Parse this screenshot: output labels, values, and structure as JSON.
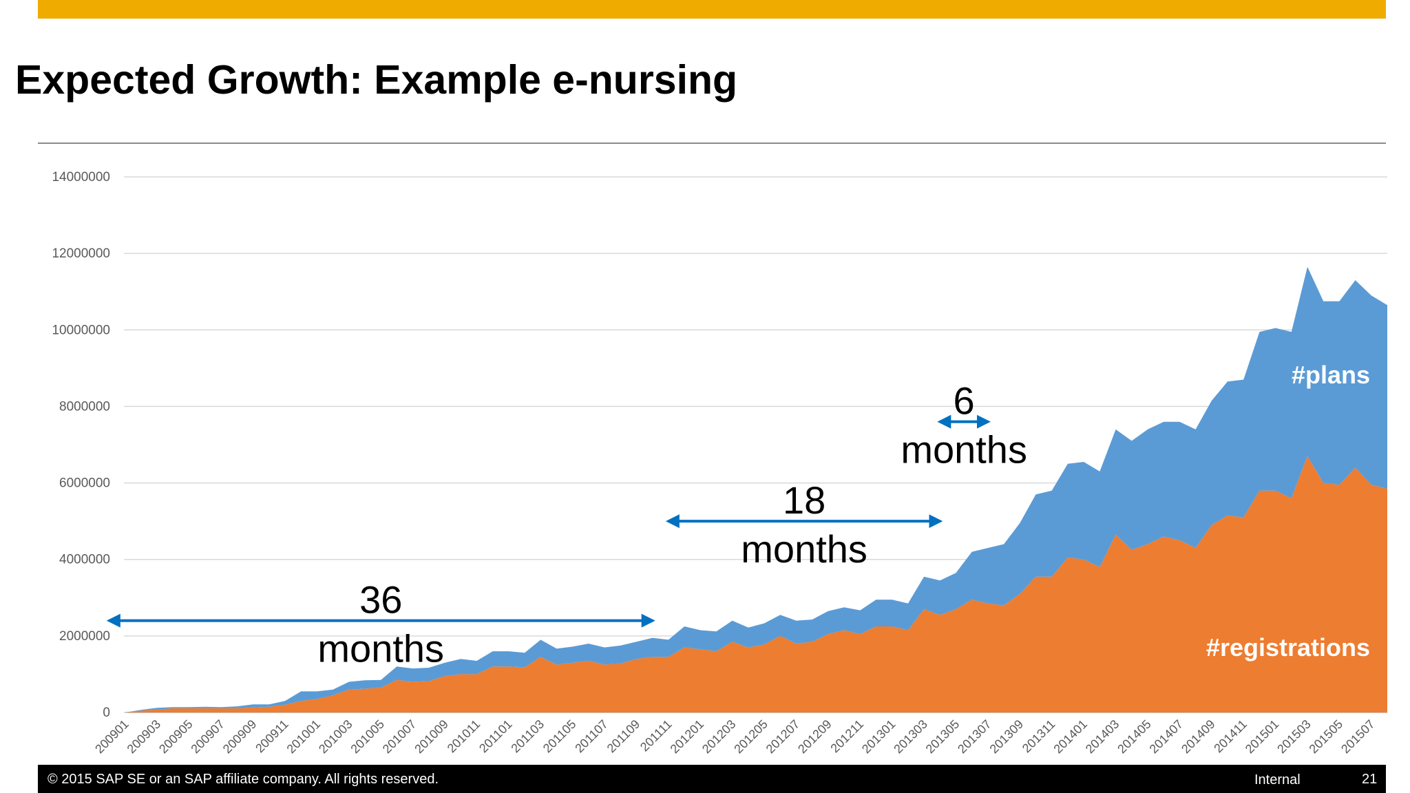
{
  "slide": {
    "title": "Expected Growth: Example e-nursing",
    "accent_color": "#f0ab00"
  },
  "footer": {
    "copyright": "© 2015 SAP SE or an SAP affiliate company. All rights reserved.",
    "classification": "Internal",
    "page_number": "21"
  },
  "chart_data": {
    "type": "area",
    "stacked": true,
    "x": [
      "200901",
      "200902",
      "200903",
      "200904",
      "200905",
      "200906",
      "200907",
      "200908",
      "200909",
      "200910",
      "200911",
      "200912",
      "201001",
      "201002",
      "201003",
      "201004",
      "201005",
      "201006",
      "201007",
      "201008",
      "201009",
      "201010",
      "201011",
      "201012",
      "201101",
      "201102",
      "201103",
      "201104",
      "201105",
      "201106",
      "201107",
      "201108",
      "201109",
      "201110",
      "201111",
      "201112",
      "201201",
      "201202",
      "201203",
      "201204",
      "201205",
      "201206",
      "201207",
      "201208",
      "201209",
      "201210",
      "201211",
      "201212",
      "201301",
      "201302",
      "201303",
      "201304",
      "201305",
      "201306",
      "201307",
      "201308",
      "201309",
      "201310",
      "201311",
      "201312",
      "201401",
      "201402",
      "201403",
      "201404",
      "201405",
      "201406",
      "201407",
      "201408",
      "201409",
      "201410",
      "201411",
      "201412",
      "201501",
      "201502",
      "201503",
      "201504",
      "201505",
      "201506",
      "201507",
      "201508"
    ],
    "x_tick_labels": [
      "200901",
      "200903",
      "200905",
      "200907",
      "200909",
      "200911",
      "201001",
      "201003",
      "201005",
      "201007",
      "201009",
      "201011",
      "201101",
      "201103",
      "201105",
      "201107",
      "201109",
      "201111",
      "201201",
      "201203",
      "201205",
      "201207",
      "201209",
      "201211",
      "201301",
      "201303",
      "201305",
      "201307",
      "201309",
      "201311",
      "201401",
      "201403",
      "201405",
      "201407",
      "201409",
      "201411",
      "201501",
      "201503",
      "201505",
      "201507"
    ],
    "series": [
      {
        "name": "#registrations",
        "color": "#ed7d31",
        "values": [
          0,
          50000,
          80000,
          110000,
          110000,
          110000,
          110000,
          110000,
          130000,
          150000,
          200000,
          300000,
          350000,
          450000,
          600000,
          620000,
          650000,
          850000,
          800000,
          820000,
          950000,
          1000000,
          1000000,
          1200000,
          1200000,
          1180000,
          1450000,
          1250000,
          1300000,
          1350000,
          1250000,
          1280000,
          1400000,
          1450000,
          1450000,
          1700000,
          1650000,
          1600000,
          1850000,
          1700000,
          1780000,
          2000000,
          1800000,
          1850000,
          2050000,
          2150000,
          2050000,
          2250000,
          2250000,
          2150000,
          2700000,
          2550000,
          2700000,
          2950000,
          2850000,
          2800000,
          3100000,
          3550000,
          3550000,
          4050000,
          4000000,
          3800000,
          4650000,
          4250000,
          4400000,
          4600000,
          4500000,
          4300000,
          4900000,
          5150000,
          5100000,
          5800000,
          5800000,
          5600000,
          6700000,
          6000000,
          5950000,
          6400000,
          5950000,
          5850000
        ]
      },
      {
        "name": "#plans",
        "color": "#5b9bd5",
        "values": [
          0,
          20000,
          40000,
          30000,
          30000,
          40000,
          30000,
          50000,
          80000,
          60000,
          100000,
          250000,
          200000,
          150000,
          200000,
          220000,
          200000,
          350000,
          350000,
          350000,
          350000,
          400000,
          350000,
          400000,
          400000,
          380000,
          450000,
          420000,
          420000,
          450000,
          450000,
          470000,
          450000,
          500000,
          450000,
          550000,
          500000,
          520000,
          550000,
          520000,
          550000,
          550000,
          600000,
          580000,
          600000,
          600000,
          620000,
          700000,
          700000,
          700000,
          850000,
          900000,
          950000,
          1250000,
          1450000,
          1600000,
          1850000,
          2150000,
          2250000,
          2450000,
          2550000,
          2500000,
          2750000,
          2850000,
          3000000,
          3000000,
          3100000,
          3100000,
          3250000,
          3500000,
          3600000,
          4150000,
          4250000,
          4350000,
          4950000,
          4750000,
          4800000,
          4900000,
          4950000,
          4800000
        ]
      }
    ],
    "y_tick_labels": [
      "0",
      "2000000",
      "4000000",
      "6000000",
      "8000000",
      "10000000",
      "12000000",
      "14000000"
    ],
    "ylim": [
      0,
      14000000
    ],
    "grid": true,
    "series_labels": [
      "#plans",
      "#registrations"
    ],
    "annotations": [
      {
        "from": "200812",
        "to": "201110",
        "value": "36",
        "unit": "months",
        "y": 2400000
      },
      {
        "from": "201111",
        "to": "201304",
        "value": "18",
        "unit": "months",
        "y": 5000000
      },
      {
        "from": "201304",
        "to": "201307",
        "value": "6",
        "unit": "months",
        "y": 7600000
      }
    ],
    "arrow_color": "#0070c0"
  }
}
